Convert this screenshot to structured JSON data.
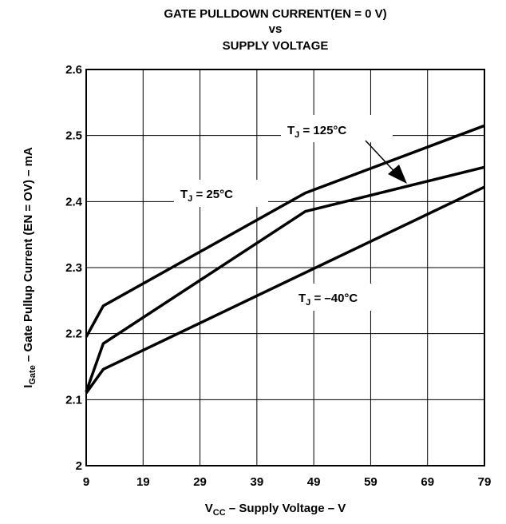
{
  "chart_data": {
    "type": "line",
    "title_lines": [
      "GATE PULLDOWN CURRENT(EN = 0 V)",
      "vs",
      "SUPPLY VOLTAGE"
    ],
    "xlabel": {
      "main": "V",
      "sub": "CC",
      "rest": " – Supply Voltage – V"
    },
    "ylabel": {
      "main": "I",
      "sub": "Gate",
      "rest": "   – Gate Pullup Current (EN = OV) – mA"
    },
    "xlim": [
      9,
      79
    ],
    "ylim": [
      2.0,
      2.6
    ],
    "x_ticks": [
      9,
      19,
      29,
      39,
      49,
      59,
      69,
      79
    ],
    "x_tick_labels": [
      "9",
      "19",
      "29",
      "39",
      "49",
      "59",
      "69",
      "79"
    ],
    "y_ticks": [
      2.0,
      2.1,
      2.2,
      2.3,
      2.4,
      2.5,
      2.6
    ],
    "y_tick_labels": [
      "2",
      "2.1",
      "2.2",
      "2.3",
      "2.4",
      "2.5",
      "2.6"
    ],
    "grid": true,
    "series": [
      {
        "name": "T_J = 125°C",
        "x": [
          9,
          12,
          47.5,
          79
        ],
        "y": [
          2.195,
          2.242,
          2.413,
          2.515
        ]
      },
      {
        "name": "T_J = 25°C",
        "x": [
          9,
          12,
          47.5,
          79
        ],
        "y": [
          2.112,
          2.185,
          2.385,
          2.452
        ]
      },
      {
        "name": "T_J = –40°C",
        "x": [
          9,
          12,
          79
        ],
        "y": [
          2.11,
          2.146,
          2.422
        ]
      }
    ],
    "annotations": [
      {
        "main": "T",
        "sub": "J",
        "rest": " = 125°C"
      },
      {
        "main": "T",
        "sub": "J",
        "rest": " = 25°C"
      },
      {
        "main": "T",
        "sub": "J",
        "rest": " = –40°C"
      }
    ]
  }
}
